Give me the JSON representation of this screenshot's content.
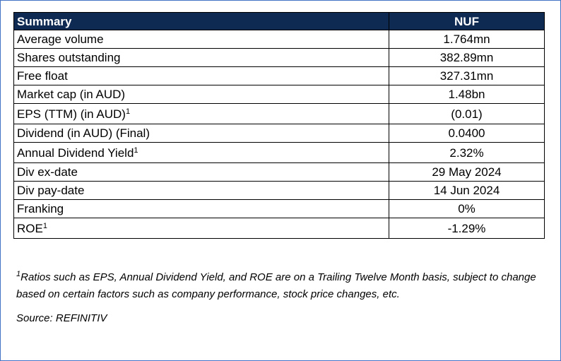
{
  "table": {
    "header": {
      "label": "Summary",
      "ticker": "NUF"
    },
    "rows": [
      {
        "label": "Average volume",
        "sup": "",
        "value": "1.764mn"
      },
      {
        "label": "Shares outstanding",
        "sup": "",
        "value": "382.89mn"
      },
      {
        "label": "Free float",
        "sup": "",
        "value": "327.31mn"
      },
      {
        "label": "Market cap (in AUD)",
        "sup": "",
        "value": "1.48bn"
      },
      {
        "label": "EPS (TTM) (in AUD)",
        "sup": "1",
        "value": "(0.01)"
      },
      {
        "label": "Dividend (in AUD) (Final)",
        "sup": "",
        "value": "0.0400"
      },
      {
        "label": "Annual Dividend Yield",
        "sup": "1",
        "value": "2.32%"
      },
      {
        "label": "Div ex-date",
        "sup": "",
        "value": "29 May 2024"
      },
      {
        "label": "Div pay-date",
        "sup": "",
        "value": "14 Jun 2024"
      },
      {
        "label": "Franking",
        "sup": "",
        "value": "0%"
      },
      {
        "label": "ROE",
        "sup": "1",
        "value": "-1.29%"
      }
    ]
  },
  "footnote": {
    "marker": "1",
    "text": "Ratios such as EPS, Annual Dividend Yield, and ROE are on a Trailing Twelve Month basis, subject to change based on certain factors such as company performance, stock price changes, etc."
  },
  "source": "Source: REFINITIV",
  "colors": {
    "header_bg": "#0e2a52",
    "header_text": "#ffffff",
    "frame_border": "#4472c4"
  }
}
